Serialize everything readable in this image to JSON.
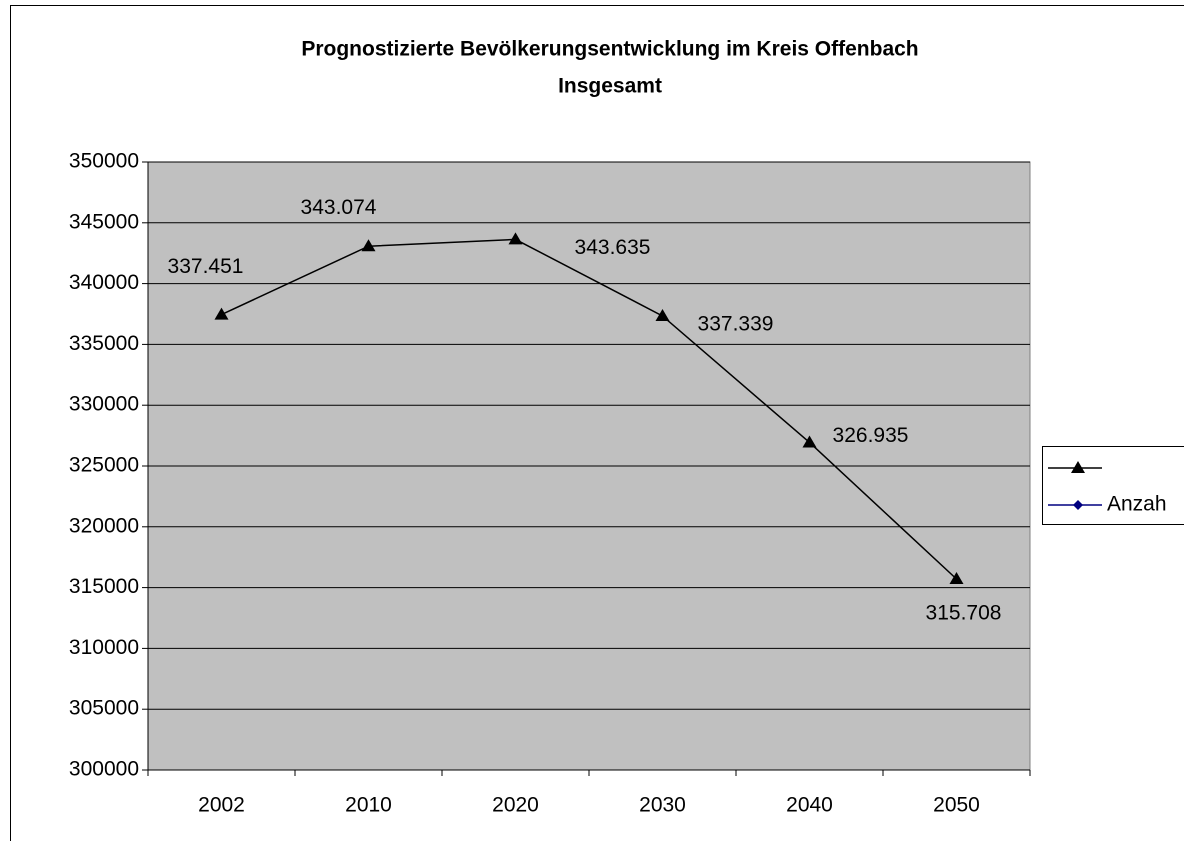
{
  "chart_data": {
    "type": "line",
    "title": "Prognostizierte Bevölkerungsentwicklung im Kreis Offenbach",
    "subtitle": "Insgesamt",
    "categories": [
      "2002",
      "2010",
      "2020",
      "2030",
      "2040",
      "2050"
    ],
    "series": [
      {
        "color": "#000000",
        "marker": "triangle",
        "values": [
          337451,
          343074,
          343635,
          337339,
          326935,
          315708
        ],
        "value_labels": [
          "337.451",
          "343.074",
          "343.635",
          "337.339",
          "326.935",
          "315.708"
        ]
      },
      {
        "name": "Anzah",
        "color": "#000080",
        "marker": "diamond",
        "values": [
          null,
          null,
          null,
          null,
          null,
          null
        ]
      }
    ],
    "ylim": [
      300000,
      350000
    ],
    "yticks": [
      300000,
      305000,
      310000,
      315000,
      320000,
      325000,
      330000,
      335000,
      340000,
      345000,
      350000
    ],
    "grid": true,
    "legend": "right",
    "plot_background": "#c0c0c0"
  }
}
